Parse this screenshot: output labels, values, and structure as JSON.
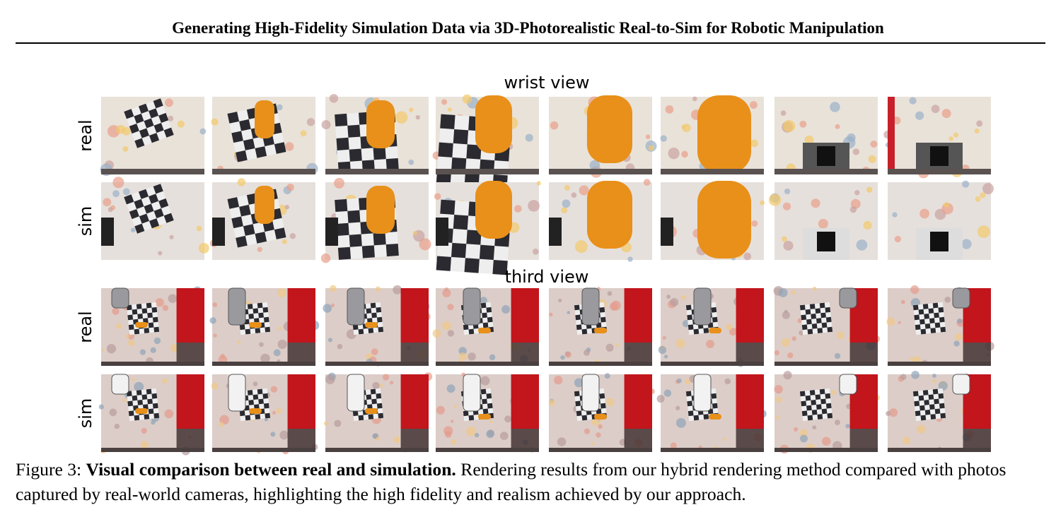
{
  "header": {
    "title": "Generating High-Fidelity Simulation Data via 3D-Photorealistic Real-to-Sim for Robotic Manipulation"
  },
  "figure": {
    "sections": [
      {
        "title": "wrist view",
        "rows": [
          {
            "label": "real"
          },
          {
            "label": "sim"
          }
        ]
      },
      {
        "title": "third view",
        "rows": [
          {
            "label": "real"
          },
          {
            "label": "sim"
          }
        ]
      }
    ]
  },
  "caption": {
    "label": "Figure 3:",
    "bold": "Visual comparison between real and simulation.",
    "text": "Rendering results from our hybrid rendering method compared with photos captured by real-world cameras, highlighting the high fidelity and realism achieved by our approach."
  }
}
